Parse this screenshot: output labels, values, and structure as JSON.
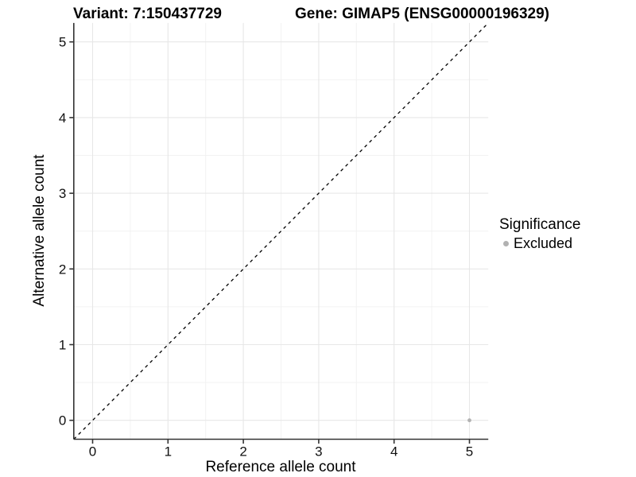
{
  "header": {
    "variant_title": "Variant: 7:150437729",
    "gene_title": "Gene: GIMAP5 (ENSG00000196329)"
  },
  "chart_data": {
    "type": "scatter",
    "title_left": "Variant: 7:150437729",
    "title_right": "Gene: GIMAP5 (ENSG00000196329)",
    "xlabel": "Reference allele count",
    "ylabel": "Alternative allele count",
    "xlim": [
      -0.25,
      5.25
    ],
    "ylim": [
      -0.25,
      5.25
    ],
    "xticks": [
      0,
      1,
      2,
      3,
      4,
      5
    ],
    "yticks": [
      0,
      1,
      2,
      3,
      4,
      5
    ],
    "minor_ticks": [
      0.5,
      1.5,
      2.5,
      3.5,
      4.5
    ],
    "grid": "major-and-minor on white background",
    "reference_line": {
      "kind": "identity y=x",
      "style": "dashed",
      "color": "#000000"
    },
    "series": [
      {
        "name": "Excluded",
        "color": "#b2b2b2",
        "points": [
          {
            "x": 5,
            "y": 0
          }
        ]
      }
    ],
    "legend": {
      "title": "Significance",
      "position": "right",
      "items": [
        {
          "label": "Excluded",
          "color": "#b2b2b2"
        }
      ]
    },
    "colors": {
      "background": "#ffffff",
      "grid_major": "#e7e7e7",
      "grid_minor": "#f2f2f2",
      "axis_line": "#333333",
      "tick_text": "#111111",
      "point": "#b2b2b2"
    }
  }
}
